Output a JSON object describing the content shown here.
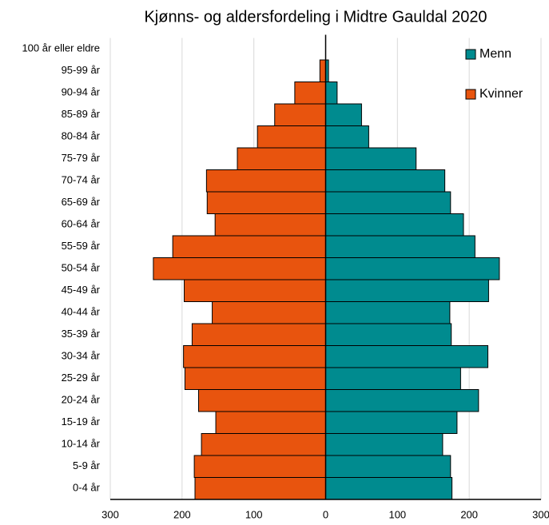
{
  "chart_data": {
    "type": "pyramid",
    "title": "Kjønns- og aldersfordeling i Midtre Gauldal 2020",
    "categories": [
      "0-4 år",
      "5-9 år",
      "10-14 år",
      "15-19 år",
      "20-24 år",
      "25-29 år",
      "30-34 år",
      "35-39 år",
      "40-44 år",
      "45-49 år",
      "50-54 år",
      "55-59 år",
      "60-64 år",
      "65-69 år",
      "70-74 år",
      "75-79 år",
      "80-84 år",
      "85-89 år",
      "90-94 år",
      "95-99 år",
      "100 år eller eldre"
    ],
    "series": [
      {
        "name": "Menn",
        "color": "#008b8f",
        "values": [
          176,
          174,
          163,
          183,
          213,
          188,
          226,
          175,
          173,
          227,
          242,
          208,
          192,
          174,
          166,
          126,
          60,
          50,
          16,
          4,
          0
        ]
      },
      {
        "name": "Kvinner",
        "color": "#e8540e",
        "values": [
          -182,
          -183,
          -173,
          -153,
          -177,
          -196,
          -198,
          -186,
          -158,
          -197,
          -240,
          -213,
          -154,
          -165,
          -166,
          -123,
          -95,
          -71,
          -43,
          -8,
          0
        ]
      }
    ],
    "xlim": [
      -300,
      300
    ],
    "xticks": [
      {
        "value": -300,
        "label": "300"
      },
      {
        "value": -200,
        "label": "200"
      },
      {
        "value": -100,
        "label": "100"
      },
      0,
      100,
      200,
      300
    ],
    "grid": true,
    "legend": "upper right"
  }
}
